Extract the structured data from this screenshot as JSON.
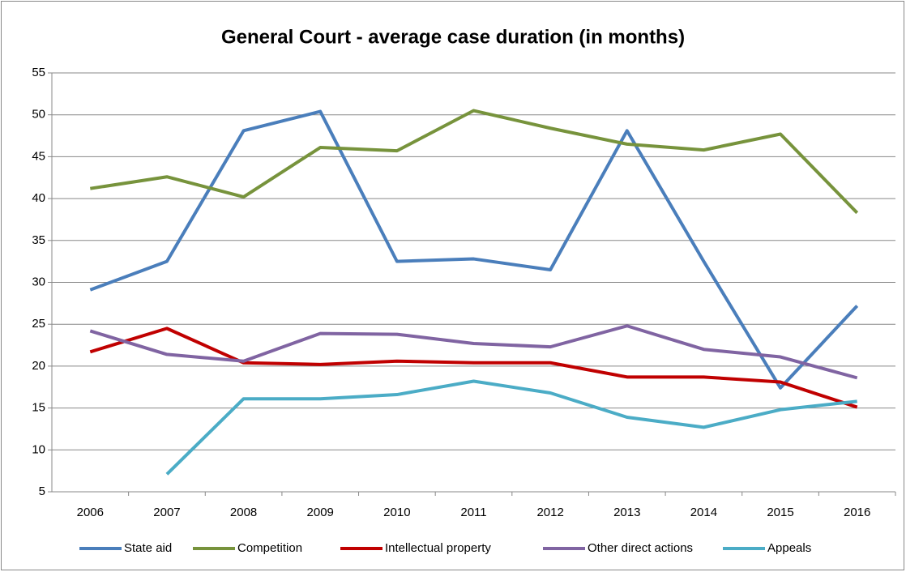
{
  "chart_data": {
    "type": "line",
    "title": "General Court - average case duration (in months)",
    "categories": [
      "2006",
      "2007",
      "2008",
      "2009",
      "2010",
      "2011",
      "2012",
      "2013",
      "2014",
      "2015",
      "2016"
    ],
    "series": [
      {
        "name": "State aid",
        "color": "#4a7ebb",
        "values": [
          29.1,
          32.5,
          48.1,
          50.4,
          32.5,
          32.8,
          31.5,
          48.1,
          32.5,
          17.4,
          27.2
        ]
      },
      {
        "name": "Competition",
        "color": "#77933c",
        "values": [
          41.2,
          42.6,
          40.2,
          46.1,
          45.7,
          50.5,
          48.4,
          46.5,
          45.8,
          47.7,
          38.3
        ]
      },
      {
        "name": "Intellectual property",
        "color": "#c00000",
        "values": [
          21.7,
          24.5,
          20.4,
          20.2,
          20.6,
          20.4,
          20.4,
          18.7,
          18.7,
          18.1,
          15.1
        ]
      },
      {
        "name": "Other direct actions",
        "color": "#8064a2",
        "values": [
          24.2,
          21.4,
          20.6,
          23.9,
          23.8,
          22.7,
          22.3,
          24.8,
          22.0,
          21.1,
          18.6
        ]
      },
      {
        "name": "Appeals",
        "color": "#4bacc6",
        "values": [
          null,
          7.1,
          16.1,
          16.1,
          16.6,
          18.2,
          16.8,
          13.9,
          12.7,
          14.8,
          15.8
        ]
      }
    ],
    "ylim": [
      5,
      55
    ],
    "yticks": [
      5,
      10,
      15,
      20,
      25,
      30,
      35,
      40,
      45,
      50,
      55
    ],
    "grid": true,
    "legend": "bottom"
  }
}
